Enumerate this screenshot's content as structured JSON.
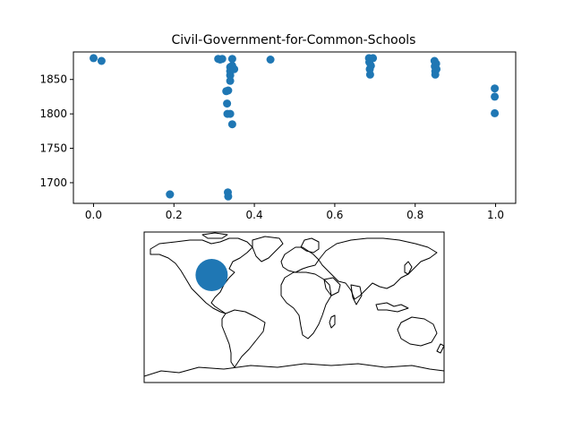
{
  "chart_data": [
    {
      "type": "scatter",
      "title": "Civil-Government-for-Common-Schools",
      "xlabel": "",
      "ylabel": "",
      "xlim": [
        -0.05,
        1.05
      ],
      "ylim": [
        1670,
        1890
      ],
      "xticks": [
        "0.0",
        "0.2",
        "0.4",
        "0.6",
        "0.8",
        "1.0"
      ],
      "yticks": [
        "1700",
        "1750",
        "1800",
        "1850"
      ],
      "xtick_values": [
        0.0,
        0.2,
        0.4,
        0.6,
        0.8,
        1.0
      ],
      "ytick_values": [
        1700,
        1750,
        1800,
        1850
      ],
      "grid": false,
      "marker_color": "#1f77b4",
      "points": [
        {
          "x": 0.0,
          "y": 1881
        },
        {
          "x": 0.02,
          "y": 1877
        },
        {
          "x": 0.19,
          "y": 1683
        },
        {
          "x": 0.19,
          "y": 1683
        },
        {
          "x": 0.31,
          "y": 1880
        },
        {
          "x": 0.315,
          "y": 1879
        },
        {
          "x": 0.32,
          "y": 1880
        },
        {
          "x": 0.33,
          "y": 1833
        },
        {
          "x": 0.332,
          "y": 1815
        },
        {
          "x": 0.333,
          "y": 1800
        },
        {
          "x": 0.334,
          "y": 1686
        },
        {
          "x": 0.335,
          "y": 1680
        },
        {
          "x": 0.335,
          "y": 1834
        },
        {
          "x": 0.34,
          "y": 1868
        },
        {
          "x": 0.34,
          "y": 1862
        },
        {
          "x": 0.34,
          "y": 1856
        },
        {
          "x": 0.34,
          "y": 1848
        },
        {
          "x": 0.34,
          "y": 1800
        },
        {
          "x": 0.345,
          "y": 1880
        },
        {
          "x": 0.345,
          "y": 1870
        },
        {
          "x": 0.345,
          "y": 1785
        },
        {
          "x": 0.35,
          "y": 1865
        },
        {
          "x": 0.44,
          "y": 1879
        },
        {
          "x": 0.685,
          "y": 1881
        },
        {
          "x": 0.686,
          "y": 1875
        },
        {
          "x": 0.687,
          "y": 1865
        },
        {
          "x": 0.688,
          "y": 1857
        },
        {
          "x": 0.69,
          "y": 1870
        },
        {
          "x": 0.695,
          "y": 1881
        },
        {
          "x": 0.848,
          "y": 1877
        },
        {
          "x": 0.849,
          "y": 1869
        },
        {
          "x": 0.85,
          "y": 1862
        },
        {
          "x": 0.85,
          "y": 1857
        },
        {
          "x": 0.852,
          "y": 1873
        },
        {
          "x": 0.853,
          "y": 1865
        },
        {
          "x": 0.998,
          "y": 1837
        },
        {
          "x": 0.998,
          "y": 1825
        },
        {
          "x": 0.998,
          "y": 1801
        }
      ]
    },
    {
      "type": "map",
      "projection": "plate-carree",
      "marker_color": "#1f77b4",
      "markers": [
        {
          "lon": -100,
          "lat": 38,
          "size": "large"
        }
      ]
    }
  ]
}
